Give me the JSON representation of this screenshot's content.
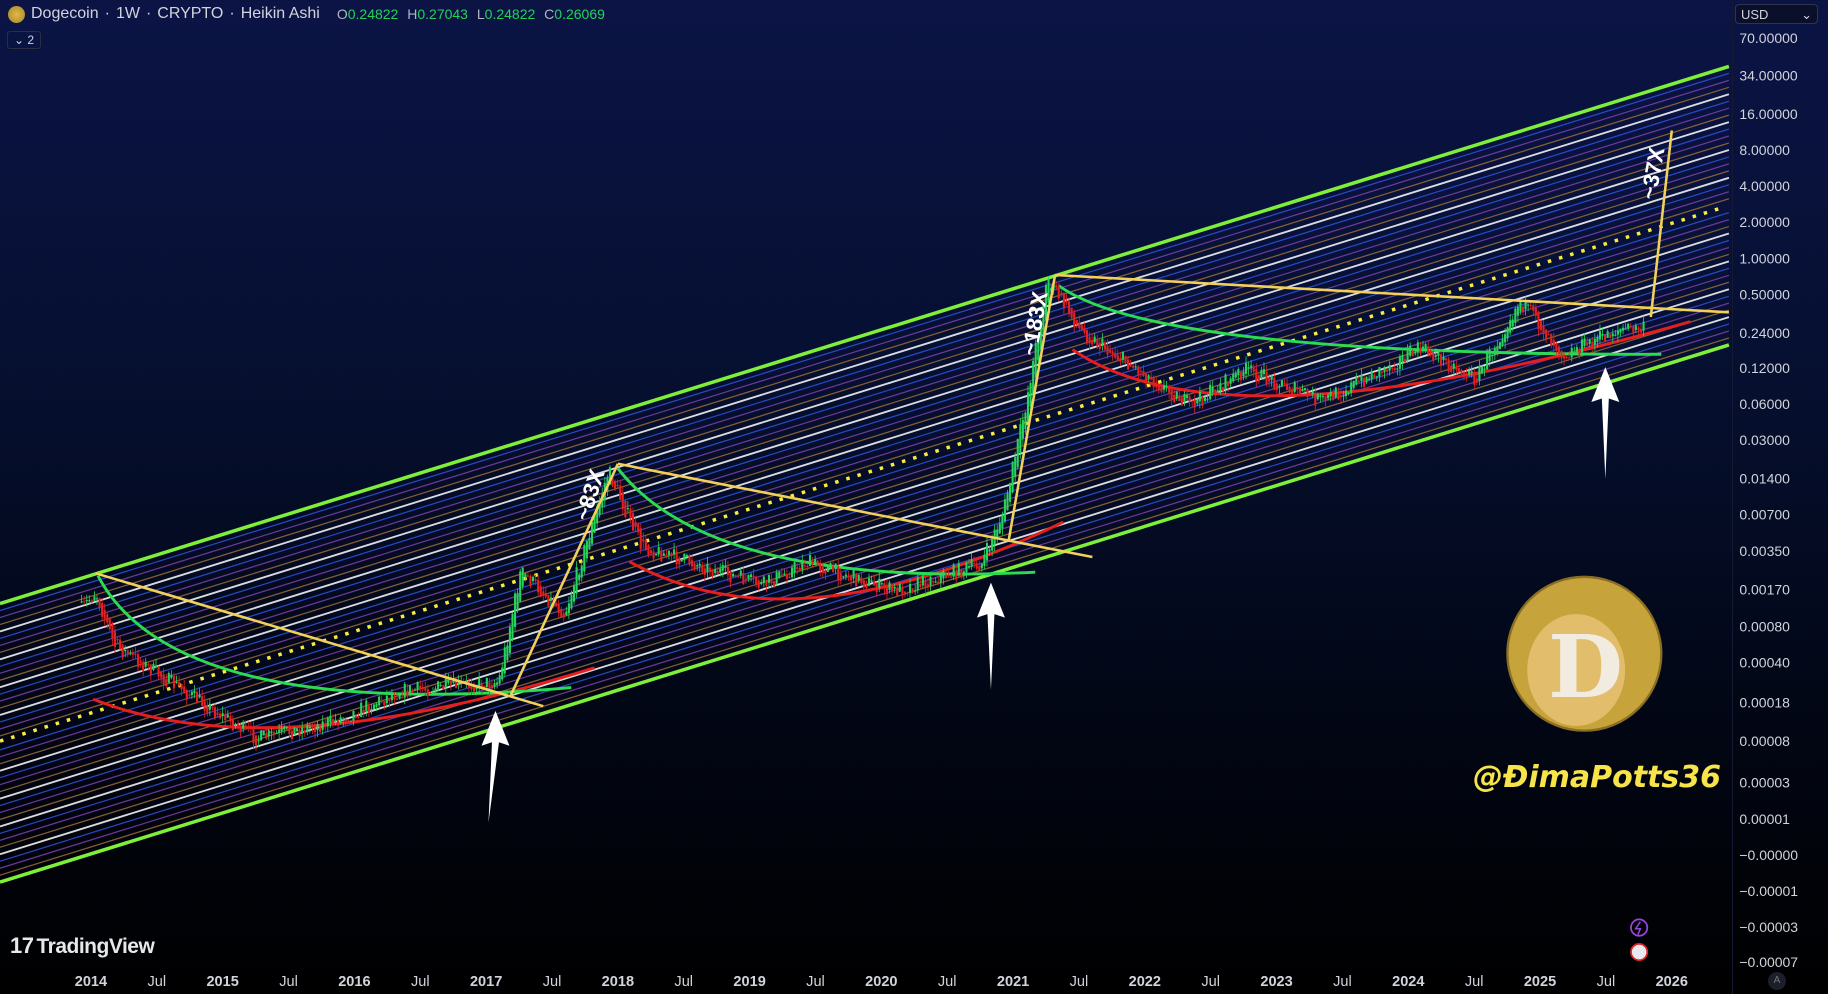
{
  "header": {
    "symbol": "Dogecoin",
    "interval": "1W",
    "exchange": "CRYPTO",
    "chart_style": "Heikin Ashi",
    "ohlc": {
      "o_label": "O",
      "o": "0.24822",
      "h_label": "H",
      "h": "0.27043",
      "l_label": "L",
      "l": "0.24822",
      "c_label": "C",
      "c": "0.26069"
    },
    "indicators_toggle": "2"
  },
  "currency": "USD",
  "branding": {
    "tradingview": "TradingView",
    "watermark_handle": "@ĐimaPotts36",
    "logo_text": "D"
  },
  "annotations": {
    "cycle1_gain": "~83X",
    "cycle2_gain": "~183X",
    "cycle3_projection": "~37X"
  },
  "colors": {
    "bull": "#26d35b",
    "bear": "#e3201f",
    "channel": "#7ef03a",
    "trend": "#f2d15a",
    "curve_green": "#2bdc52",
    "curve_red": "#e81e1e",
    "midline": "#f8ec3c"
  },
  "chart_data": {
    "type": "candlestick",
    "title": "Dogecoin · 1W · CRYPTO · Heikin Ashi",
    "y_scale": "log",
    "y_ticks": [
      "70.00000",
      "34.00000",
      "16.00000",
      "8.00000",
      "4.00000",
      "2.00000",
      "1.00000",
      "0.50000",
      "0.24000",
      "0.12000",
      "0.06000",
      "0.03000",
      "0.01400",
      "0.00700",
      "0.00350",
      "0.00170",
      "0.00080",
      "0.00040",
      "0.00018",
      "0.00008",
      "0.00003",
      "0.00001",
      "−0.00000",
      "−0.00001",
      "−0.00003",
      "−0.00007"
    ],
    "x_ticks": [
      "2014",
      "Jul",
      "2015",
      "Jul",
      "2016",
      "Jul",
      "2017",
      "Jul",
      "2018",
      "Jul",
      "2019",
      "Jul",
      "2020",
      "Jul",
      "2021",
      "Jul",
      "2022",
      "Jul",
      "2023",
      "Jul",
      "2024",
      "Jul",
      "2025",
      "Jul",
      "2026"
    ],
    "price_path": [
      [
        "2014-01",
        0.0012
      ],
      [
        "2014-01",
        0.0017
      ],
      [
        "2014-04",
        0.0006
      ],
      [
        "2015-05",
        0.0001
      ],
      [
        "2015-12",
        0.00014
      ],
      [
        "2016-06",
        0.00025
      ],
      [
        "2017-03",
        0.0003
      ],
      [
        "2017-05",
        0.0025
      ],
      [
        "2017-09",
        0.0011
      ],
      [
        "2018-01",
        0.017
      ],
      [
        "2018-04",
        0.004
      ],
      [
        "2019-03",
        0.0019
      ],
      [
        "2019-07",
        0.003
      ],
      [
        "2020-03",
        0.0017
      ],
      [
        "2020-11",
        0.0029
      ],
      [
        "2021-01",
        0.008
      ],
      [
        "2021-03",
        0.06
      ],
      [
        "2021-05",
        0.7
      ],
      [
        "2021-08",
        0.25
      ],
      [
        "2022-06",
        0.06
      ],
      [
        "2022-11",
        0.12
      ],
      [
        "2023-06",
        0.065
      ],
      [
        "2024-03",
        0.18
      ],
      [
        "2024-08",
        0.1
      ],
      [
        "2024-12",
        0.45
      ],
      [
        "2025-04",
        0.16
      ],
      [
        "2025-09",
        0.26
      ]
    ],
    "legend": "none",
    "grid": false
  }
}
